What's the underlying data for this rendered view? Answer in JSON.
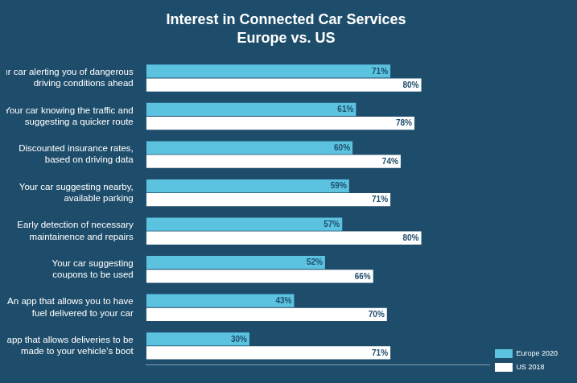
{
  "chart_data": {
    "type": "bar",
    "orientation": "horizontal",
    "title": "Interest in Connected Car Services",
    "subtitle": "Europe vs. US",
    "categories": [
      "Your car alerting you of dangerous\ndriving conditions ahead",
      "Your car knowing the traffic and\nsuggesting a quicker route",
      "Discounted insurance rates,\nbased on driving data",
      "Your car suggesting nearby,\navailable parking",
      "Early detection of necessary\nmaintainence and repairs",
      "Your car suggesting\ncoupons to be used",
      "An app that allows you to have\nfuel delivered to your car",
      "An app that allows deliveries to be\nmade to your vehicle’s boot"
    ],
    "series": [
      {
        "name": "Europe 2020",
        "color": "#5bc2df",
        "values": [
          71,
          61,
          60,
          59,
          57,
          52,
          43,
          30
        ],
        "value_labels": [
          "71%",
          "61%",
          "60%",
          "59%",
          "57%",
          "52%",
          "43%",
          "30%"
        ]
      },
      {
        "name": "US 2018",
        "color": "#ffffff",
        "values": [
          80,
          78,
          74,
          71,
          80,
          66,
          70,
          71
        ],
        "value_labels": [
          "80%",
          "78%",
          "74%",
          "71%",
          "80%",
          "66%",
          "70%",
          "71%"
        ]
      }
    ],
    "xlim": [
      0,
      100
    ],
    "grid": false,
    "legend": "lower right",
    "data_labels": true,
    "tick_labels": "y"
  }
}
